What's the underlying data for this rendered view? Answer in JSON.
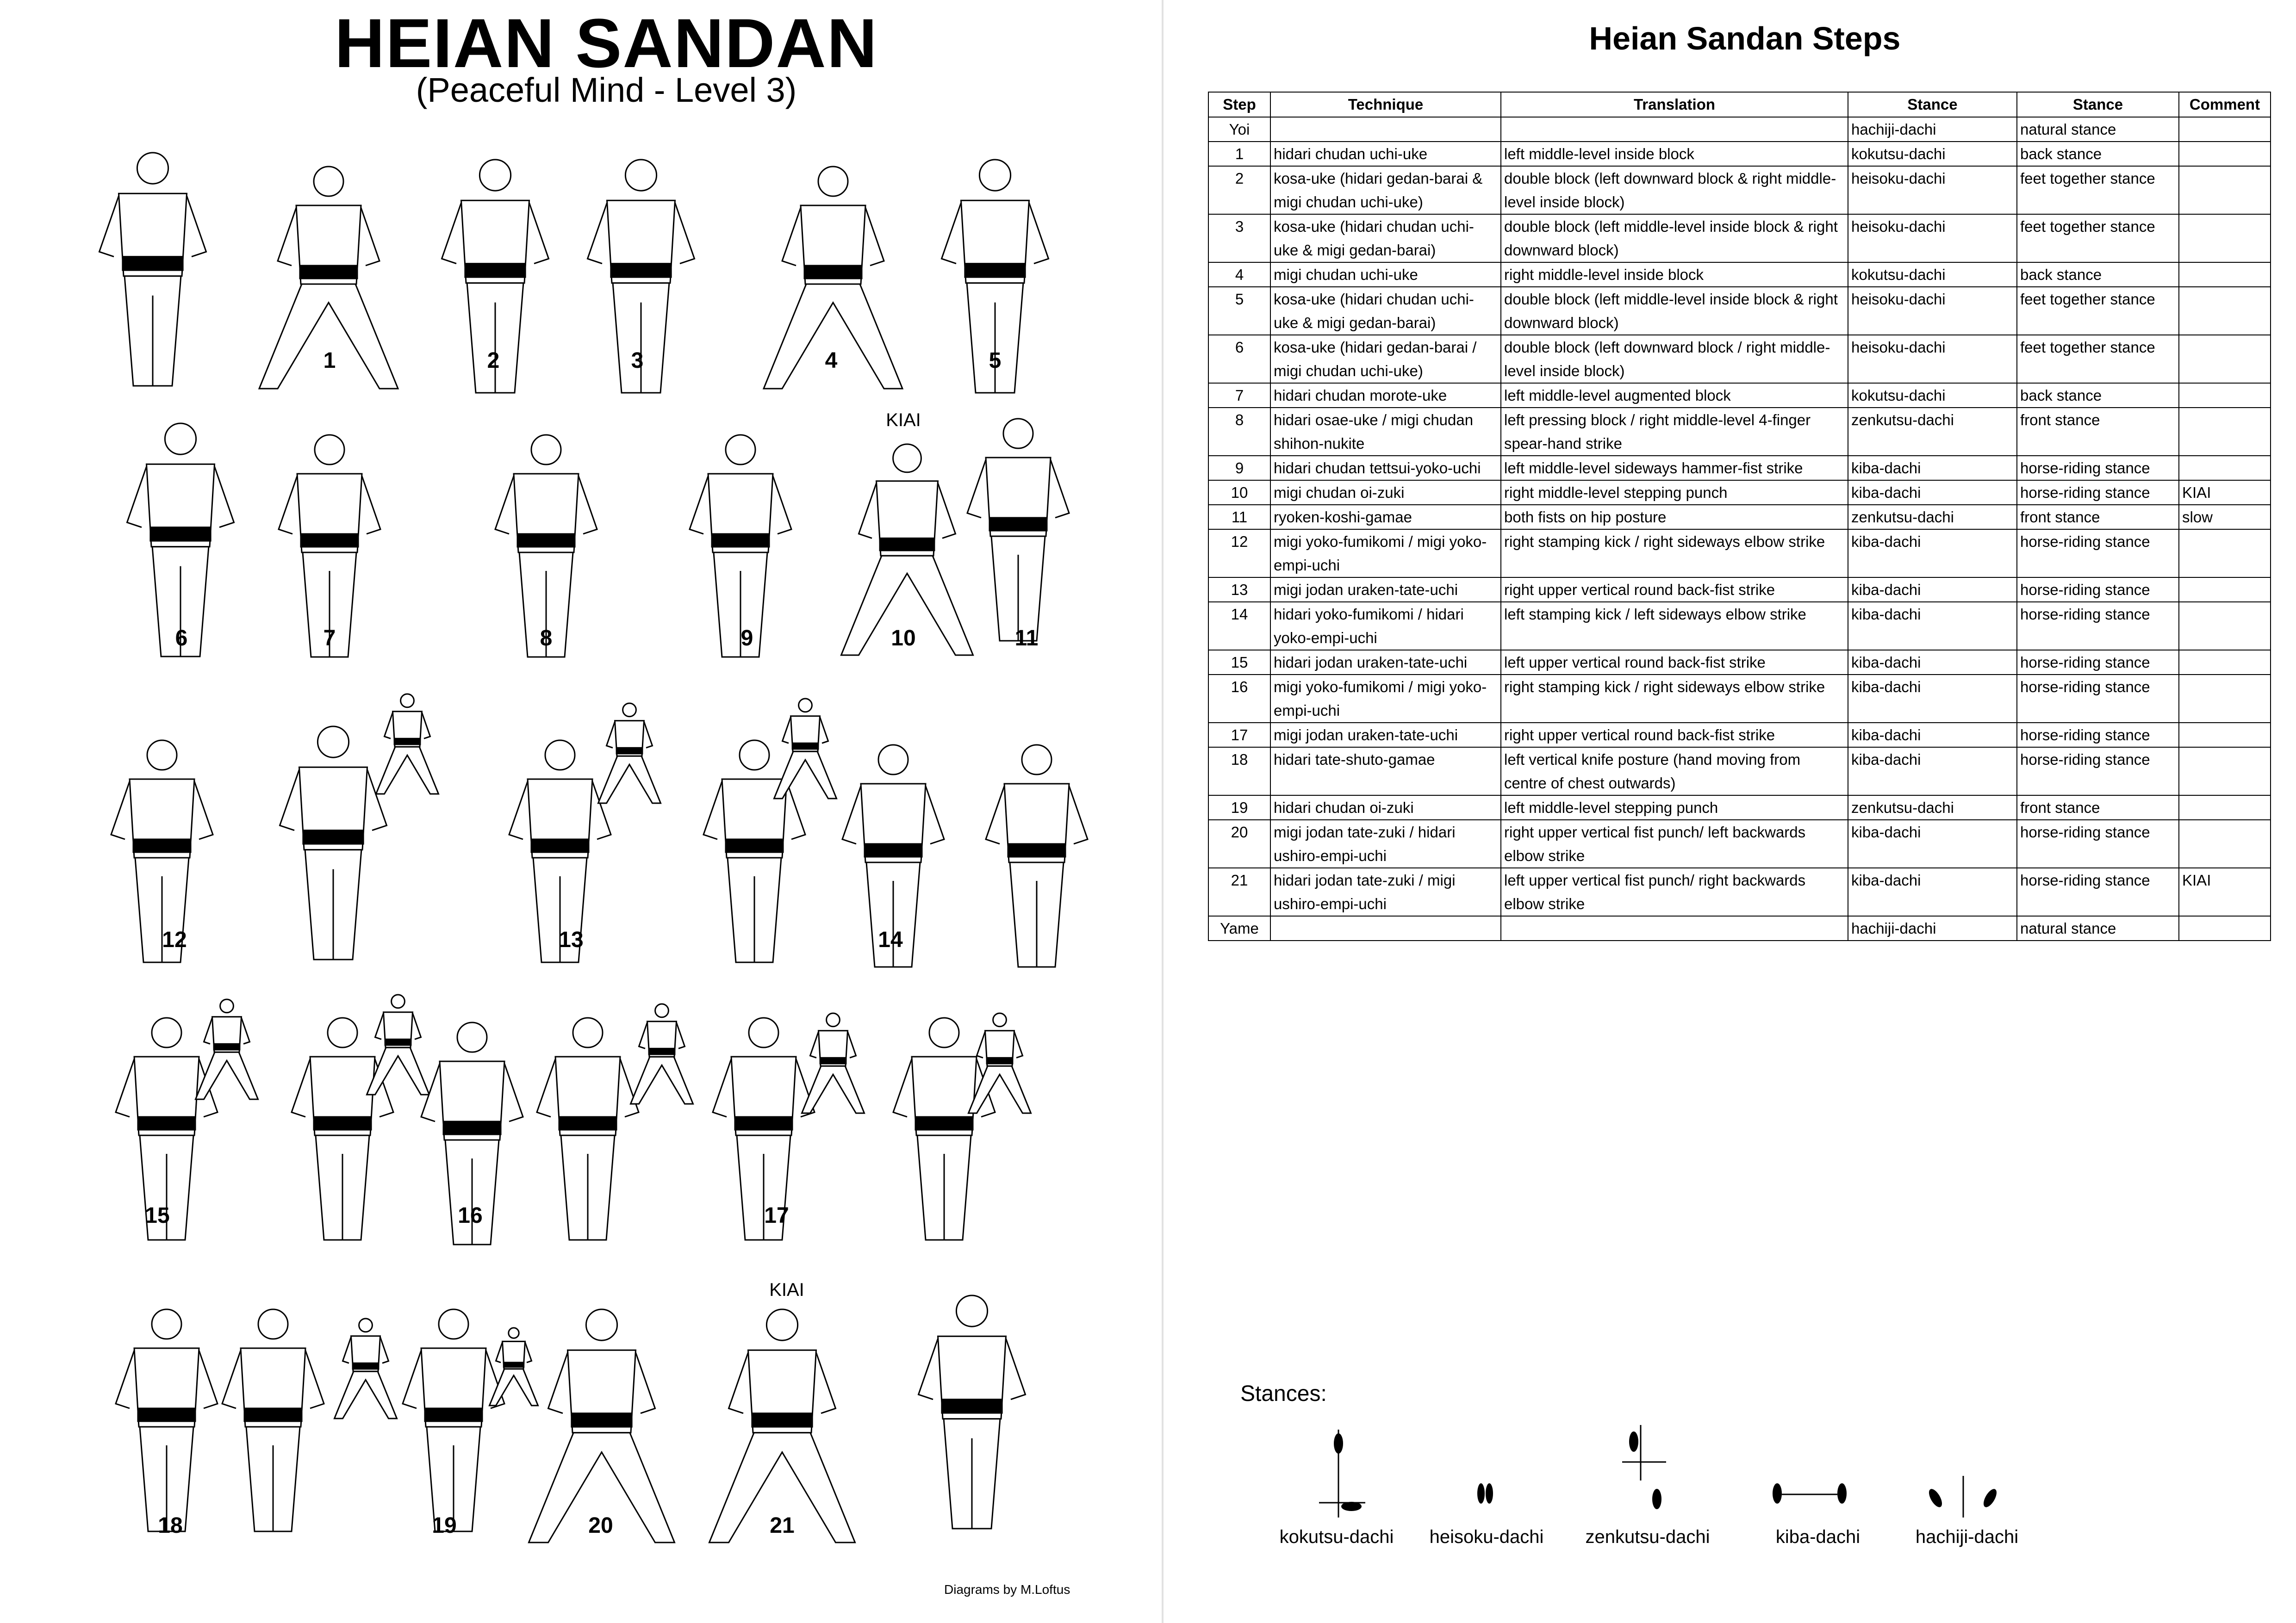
{
  "poster": {
    "title": "HEIAN SANDAN",
    "subtitle": "(Peaceful Mind - Level 3)",
    "credit": "Diagrams by M.Loftus",
    "kiai": "KIAI",
    "step_numbers": [
      "1",
      "2",
      "3",
      "4",
      "5",
      "6",
      "7",
      "8",
      "9",
      "10",
      "11",
      "12",
      "13",
      "14",
      "15",
      "16",
      "17",
      "18",
      "19",
      "20",
      "21"
    ]
  },
  "steps_table": {
    "title": "Heian Sandan Steps",
    "columns": [
      "Step",
      "Technique",
      "Translation",
      "Stance",
      "Stance",
      "Comment"
    ],
    "rows": [
      [
        "Yoi",
        "",
        "",
        "hachiji-dachi",
        "natural stance",
        ""
      ],
      [
        "1",
        "hidari chudan uchi-uke",
        "left middle-level inside block",
        "kokutsu-dachi",
        "back stance",
        ""
      ],
      [
        "2",
        "kosa-uke (hidari gedan-barai & migi chudan uchi-uke)",
        "double block (left downward block  & right middle-level inside block)",
        "heisoku-dachi",
        "feet together stance",
        ""
      ],
      [
        "3",
        "kosa-uke (hidari chudan uchi-uke & migi gedan-barai)",
        "double block (left middle-level inside block & right downward block)",
        "heisoku-dachi",
        "feet together stance",
        ""
      ],
      [
        "4",
        "migi chudan uchi-uke",
        "right middle-level inside block",
        "kokutsu-dachi",
        "back stance",
        ""
      ],
      [
        "5",
        "kosa-uke (hidari chudan uchi-uke & migi gedan-barai)",
        "double block (left middle-level inside block & right downward block)",
        "heisoku-dachi",
        "feet together stance",
        ""
      ],
      [
        "6",
        "kosa-uke (hidari gedan-barai / migi chudan uchi-uke)",
        "double block (left downward block / right middle-level inside block)",
        "heisoku-dachi",
        "feet together stance",
        ""
      ],
      [
        "7",
        "hidari chudan morote-uke",
        "left middle-level augmented block",
        "kokutsu-dachi",
        "back stance",
        ""
      ],
      [
        "8",
        "hidari osae-uke / migi chudan shihon-nukite",
        "left pressing block / right middle-level 4-finger spear-hand strike",
        "zenkutsu-dachi",
        "front stance",
        ""
      ],
      [
        "9",
        "hidari chudan tettsui-yoko-uchi",
        "left middle-level sideways hammer-fist strike",
        "kiba-dachi",
        "horse-riding stance",
        ""
      ],
      [
        "10",
        "migi chudan oi-zuki",
        "right middle-level stepping punch",
        "kiba-dachi",
        "horse-riding stance",
        "KIAI"
      ],
      [
        "11",
        "ryoken-koshi-gamae",
        "both fists on hip posture",
        "zenkutsu-dachi",
        "front stance",
        "slow"
      ],
      [
        "12",
        "migi yoko-fumikomi / migi yoko-empi-uchi",
        "right stamping kick / right sideways elbow strike",
        "kiba-dachi",
        "horse-riding stance",
        ""
      ],
      [
        "13",
        "migi jodan uraken-tate-uchi",
        "right upper vertical round back-fist strike",
        "kiba-dachi",
        "horse-riding stance",
        ""
      ],
      [
        "14",
        "hidari yoko-fumikomi / hidari yoko-empi-uchi",
        "left stamping kick / left sideways elbow strike",
        "kiba-dachi",
        "horse-riding stance",
        ""
      ],
      [
        "15",
        "hidari jodan uraken-tate-uchi",
        "left upper vertical round back-fist strike",
        "kiba-dachi",
        "horse-riding stance",
        ""
      ],
      [
        "16",
        "migi yoko-fumikomi / migi yoko-empi-uchi",
        "right stamping kick / right sideways elbow strike",
        "kiba-dachi",
        "horse-riding stance",
        ""
      ],
      [
        "17",
        "migi jodan uraken-tate-uchi",
        "right upper vertical round back-fist strike",
        "kiba-dachi",
        "horse-riding stance",
        ""
      ],
      [
        "18",
        "hidari tate-shuto-gamae",
        "left vertical knife posture (hand moving from centre of chest outwards)",
        "kiba-dachi",
        "horse-riding stance",
        ""
      ],
      [
        "19",
        "hidari chudan oi-zuki",
        "left middle-level stepping punch",
        "zenkutsu-dachi",
        "front stance",
        ""
      ],
      [
        "20",
        "migi jodan tate-zuki / hidari ushiro-empi-uchi",
        "right upper vertical fist punch/ left backwards elbow strike",
        "kiba-dachi",
        "horse-riding stance",
        ""
      ],
      [
        "21",
        "hidari jodan tate-zuki / migi ushiro-empi-uchi",
        "left upper vertical fist punch/ right backwards elbow strike",
        "kiba-dachi",
        "horse-riding stance",
        "KIAI"
      ],
      [
        "Yame",
        "",
        "",
        "hachiji-dachi",
        "natural stance",
        ""
      ]
    ]
  },
  "stances": {
    "label": "Stances:",
    "items": [
      "kokutsu-dachi",
      "heisoku-dachi",
      "zenkutsu-dachi",
      "kiba-dachi",
      "hachiji-dachi"
    ]
  }
}
